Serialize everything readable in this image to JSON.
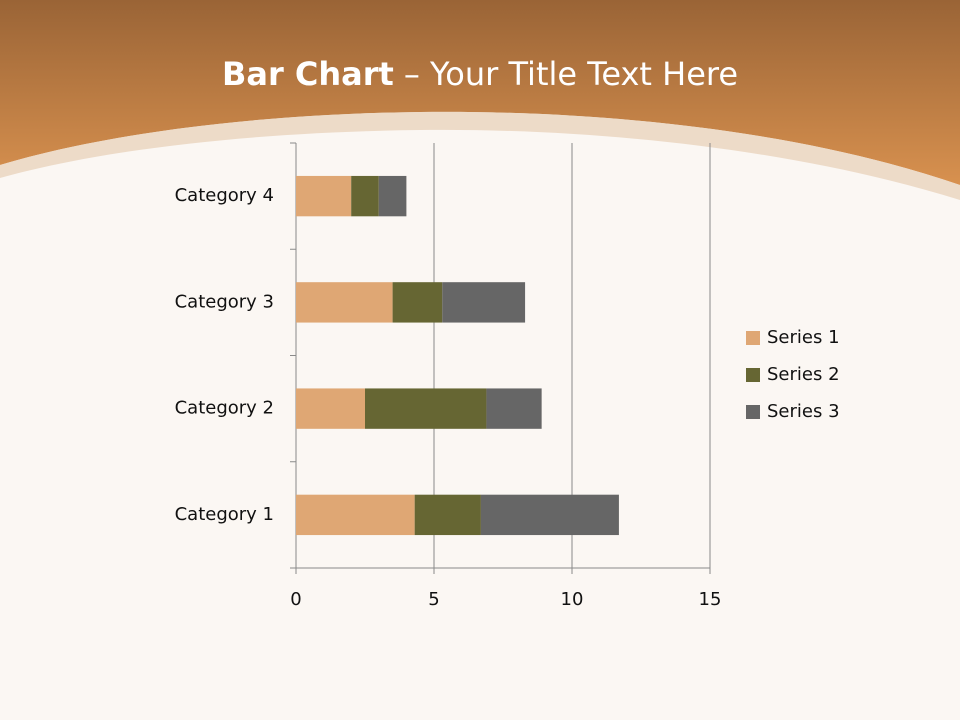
{
  "chart_data": {
    "type": "stacked_bar_horizontal",
    "title_lead": "Bar Chart",
    "title": "– Your Title Text Here",
    "categories": [
      "Category 1",
      "Category 2",
      "Category 3",
      "Category 4"
    ],
    "series": [
      {
        "name": "Series 1",
        "color": "#dfa774",
        "values": [
          4.3,
          2.5,
          3.5,
          2
        ]
      },
      {
        "name": "Series 2",
        "color": "#666633",
        "values": [
          2.4,
          4.4,
          1.8,
          1
        ]
      },
      {
        "name": "Series 3",
        "color": "#666666",
        "values": [
          5,
          2,
          3,
          1
        ]
      }
    ],
    "xlim": [
      0,
      15
    ],
    "xticks": [
      0,
      5,
      10,
      15
    ],
    "grid": true,
    "legend": "right"
  }
}
